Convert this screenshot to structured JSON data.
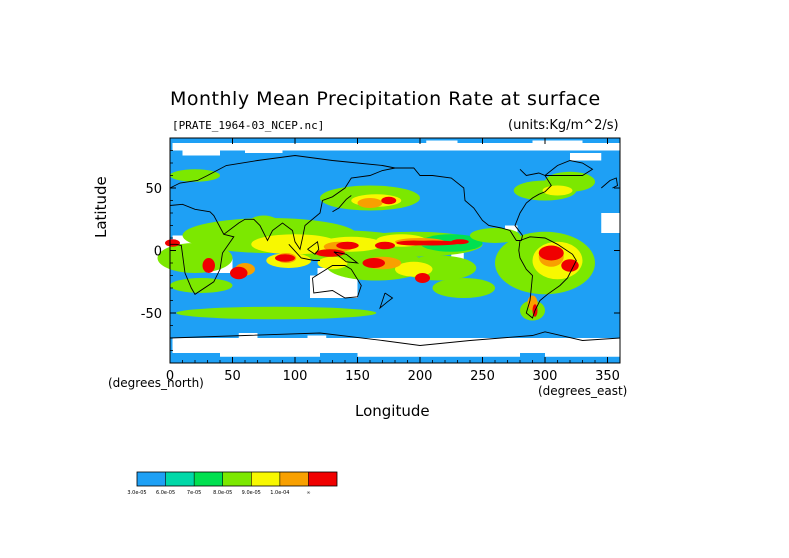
{
  "chart_data": {
    "type": "heatmap",
    "title": "Monthly Mean Precipitation Rate at surface",
    "file_label": "[PRATE_1964-03_NCEP.nc]",
    "units_label": "(units:Kg/m^2/s)",
    "xlabel": "Longitude",
    "ylabel": "Latitude",
    "x_unit_note": "(degrees_east)",
    "y_unit_note": "(degrees_north)",
    "xlim": [
      0,
      360
    ],
    "ylim": [
      -90,
      90
    ],
    "x_ticks": [
      "0",
      "50",
      "100",
      "150",
      "200",
      "250",
      "300",
      "350"
    ],
    "y_ticks": [
      "50",
      "0",
      "-50"
    ],
    "grid": false,
    "colorbar": {
      "labels": [
        "3.0e-05",
        "6.0e-05",
        "7e-05",
        "8.0e-05",
        "9.0e-05",
        "1.0e-04",
        "∞"
      ],
      "colors": [
        "#1ea0f5",
        "#00d8a8",
        "#00e050",
        "#7ce800",
        "#f8f800",
        "#f8a000",
        "#f00000"
      ]
    },
    "colors": {
      "background": "#1ea0f5",
      "dry": "#ffffff",
      "coast": "#000000"
    }
  }
}
